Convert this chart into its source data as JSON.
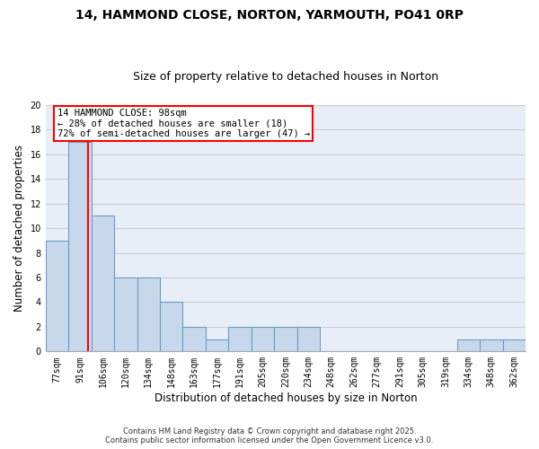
{
  "title1": "14, HAMMOND CLOSE, NORTON, YARMOUTH, PO41 0RP",
  "title2": "Size of property relative to detached houses in Norton",
  "xlabel": "Distribution of detached houses by size in Norton",
  "ylabel": "Number of detached properties",
  "categories": [
    "77sqm",
    "91sqm",
    "106sqm",
    "120sqm",
    "134sqm",
    "148sqm",
    "163sqm",
    "177sqm",
    "191sqm",
    "205sqm",
    "220sqm",
    "234sqm",
    "248sqm",
    "262sqm",
    "277sqm",
    "291sqm",
    "305sqm",
    "319sqm",
    "334sqm",
    "348sqm",
    "362sqm"
  ],
  "values": [
    9,
    17,
    11,
    6,
    6,
    4,
    2,
    1,
    2,
    2,
    2,
    2,
    0,
    0,
    0,
    0,
    0,
    0,
    1,
    1,
    1
  ],
  "bar_color": "#c8d8ec",
  "bar_edge_color": "#6a9ec5",
  "red_line_x": 1.35,
  "annotation_line1": "14 HAMMOND CLOSE: 98sqm",
  "annotation_line2": "← 28% of detached houses are smaller (18)",
  "annotation_line3": "72% of semi-detached houses are larger (47) →",
  "annotation_box_color": "white",
  "annotation_box_edge_color": "red",
  "ylim": [
    0,
    20
  ],
  "yticks": [
    0,
    2,
    4,
    6,
    8,
    10,
    12,
    14,
    16,
    18,
    20
  ],
  "grid_color": "#cccccc",
  "bg_color": "#e8eef8",
  "footer1": "Contains HM Land Registry data © Crown copyright and database right 2025.",
  "footer2": "Contains public sector information licensed under the Open Government Licence v3.0.",
  "title1_fontsize": 10,
  "title2_fontsize": 9,
  "tick_fontsize": 7,
  "ylabel_fontsize": 8.5,
  "xlabel_fontsize": 8.5,
  "annotation_fontsize": 7.5,
  "footer_fontsize": 6
}
